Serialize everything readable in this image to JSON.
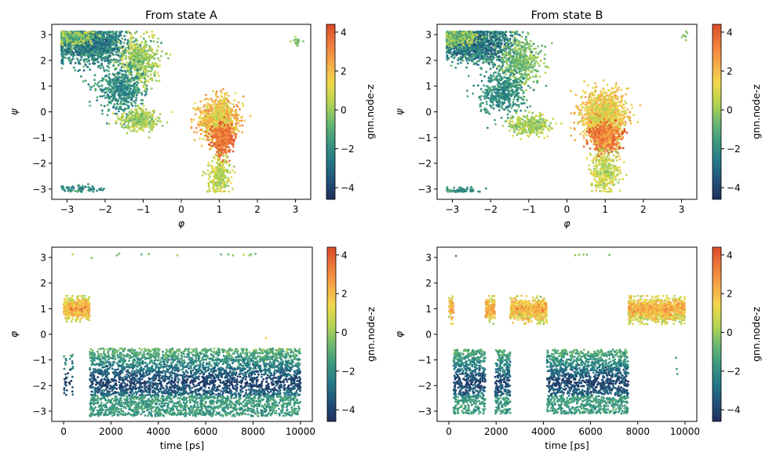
{
  "colormap": {
    "name": "gnn.node-z",
    "stops": [
      "#1d2f5c",
      "#23527a",
      "#237a86",
      "#3c9a80",
      "#6fba70",
      "#b8d64f",
      "#f1d74b",
      "#f7a848",
      "#ef7a3c",
      "#d94a26"
    ],
    "vmin": -4.6,
    "vmax": 4.4,
    "ticks": [
      -4,
      -2,
      0,
      2,
      4
    ]
  },
  "chart_data": [
    {
      "type": "scatter",
      "title": "From state A",
      "xlabel": "φ",
      "ylabel": "ψ",
      "xlim": [
        -3.4,
        3.4
      ],
      "ylim": [
        -3.4,
        3.4
      ],
      "xticks": [
        -3,
        -2,
        -1,
        0,
        1,
        2,
        3
      ],
      "yticks": [
        -3,
        -2,
        -1,
        0,
        1,
        2,
        3
      ],
      "colorbar_label": "gnn.node-z",
      "clusters": [
        {
          "region": "beta",
          "center": [
            -2.4,
            2.6
          ],
          "spread": [
            0.5,
            0.35
          ],
          "n": 1300,
          "z": [
            -4,
            -1
          ]
        },
        {
          "region": "beta-edge",
          "center": [
            -2.9,
            2.9
          ],
          "spread": [
            0.3,
            0.15
          ],
          "n": 300,
          "z": [
            -2,
            1
          ]
        },
        {
          "region": "ppII",
          "center": [
            -1.1,
            2.0
          ],
          "spread": [
            0.25,
            0.45
          ],
          "n": 450,
          "z": [
            -1,
            1
          ]
        },
        {
          "region": "bridge",
          "center": [
            -1.6,
            0.9
          ],
          "spread": [
            0.3,
            0.45
          ],
          "n": 500,
          "z": [
            -3,
            -1
          ]
        },
        {
          "region": "alphaR",
          "center": [
            -1.1,
            -0.3
          ],
          "spread": [
            0.25,
            0.2
          ],
          "n": 350,
          "z": [
            -1,
            1
          ]
        },
        {
          "region": "alphaL",
          "center": [
            1.0,
            -0.3
          ],
          "spread": [
            0.25,
            0.4
          ],
          "n": 900,
          "z": [
            0,
            3
          ]
        },
        {
          "region": "alphaL-core",
          "center": [
            1.1,
            -1.1
          ],
          "spread": [
            0.15,
            0.3
          ],
          "n": 350,
          "z": [
            2.5,
            4.3
          ]
        },
        {
          "region": "alphaL-tail",
          "center": [
            1.0,
            -2.5
          ],
          "spread": [
            0.15,
            0.35
          ],
          "n": 250,
          "z": [
            -0.5,
            1.5
          ]
        },
        {
          "region": "corner-bottom",
          "center": [
            -2.6,
            -3.0
          ],
          "spread": [
            0.35,
            0.08
          ],
          "n": 70,
          "z": [
            -3,
            -1
          ]
        },
        {
          "region": "corner-right",
          "center": [
            3.05,
            2.75
          ],
          "spread": [
            0.06,
            0.1
          ],
          "n": 20,
          "z": [
            -1,
            0.5
          ]
        }
      ]
    },
    {
      "type": "scatter",
      "title": "From state B",
      "xlabel": "φ",
      "ylabel": "ψ",
      "xlim": [
        -3.4,
        3.4
      ],
      "ylim": [
        -3.4,
        3.4
      ],
      "xticks": [
        -3,
        -2,
        -1,
        0,
        1,
        2,
        3
      ],
      "yticks": [
        -3,
        -2,
        -1,
        0,
        1,
        2,
        3
      ],
      "colorbar_label": "gnn.node-z",
      "clusters": [
        {
          "region": "beta",
          "center": [
            -2.3,
            2.6
          ],
          "spread": [
            0.5,
            0.35
          ],
          "n": 1200,
          "z": [
            -4.2,
            -1
          ]
        },
        {
          "region": "beta-edge",
          "center": [
            -2.9,
            2.9
          ],
          "spread": [
            0.3,
            0.15
          ],
          "n": 300,
          "z": [
            -2,
            1
          ]
        },
        {
          "region": "ppII",
          "center": [
            -1.2,
            1.9
          ],
          "spread": [
            0.25,
            0.45
          ],
          "n": 400,
          "z": [
            -1.5,
            0.5
          ]
        },
        {
          "region": "bridge",
          "center": [
            -1.7,
            0.8
          ],
          "spread": [
            0.3,
            0.45
          ],
          "n": 450,
          "z": [
            -3,
            -1
          ]
        },
        {
          "region": "alphaR",
          "center": [
            -1.0,
            -0.5
          ],
          "spread": [
            0.25,
            0.2
          ],
          "n": 300,
          "z": [
            -1,
            1
          ]
        },
        {
          "region": "alphaL",
          "center": [
            0.95,
            -0.1
          ],
          "spread": [
            0.3,
            0.45
          ],
          "n": 1100,
          "z": [
            0,
            2.5
          ]
        },
        {
          "region": "alphaL-core",
          "center": [
            1.0,
            -1.0
          ],
          "spread": [
            0.2,
            0.3
          ],
          "n": 500,
          "z": [
            2,
            4.3
          ]
        },
        {
          "region": "alphaL-tail",
          "center": [
            1.0,
            -2.3
          ],
          "spread": [
            0.18,
            0.4
          ],
          "n": 350,
          "z": [
            -0.5,
            1.5
          ]
        },
        {
          "region": "corner-bottom",
          "center": [
            -2.8,
            -3.05
          ],
          "spread": [
            0.3,
            0.07
          ],
          "n": 60,
          "z": [
            -3,
            -1
          ]
        },
        {
          "region": "corner-right",
          "center": [
            3.1,
            2.9
          ],
          "spread": [
            0.04,
            0.15
          ],
          "n": 8,
          "z": [
            -1,
            0.5
          ]
        }
      ]
    },
    {
      "type": "scatter",
      "xlabel": "time [ps]",
      "ylabel": "φ",
      "xlim": [
        -500,
        10500
      ],
      "ylim": [
        -3.4,
        3.4
      ],
      "xticks": [
        0,
        2000,
        4000,
        6000,
        8000,
        10000
      ],
      "yticks": [
        -3,
        -2,
        -1,
        0,
        1,
        2,
        3
      ],
      "colorbar_label": "gnn.node-z",
      "segments": [
        {
          "state": "alphaL",
          "t": [
            0,
            1100
          ],
          "y": [
            0.5,
            1.5
          ],
          "n": 500
        },
        {
          "state": "beta",
          "t": [
            1100,
            10000
          ],
          "y": [
            -3.2,
            -0.55
          ],
          "n": 4200
        },
        {
          "state": "beta-sparse",
          "t": [
            0,
            400
          ],
          "y": [
            -2.6,
            -0.6
          ],
          "n": 40
        }
      ],
      "outliers": [
        [
          380,
          3.12
        ],
        [
          1180,
          2.98
        ],
        [
          2250,
          3.08
        ],
        [
          2350,
          3.15
        ],
        [
          3280,
          3.12
        ],
        [
          3600,
          3.13
        ],
        [
          4800,
          3.08
        ],
        [
          6650,
          3.12
        ],
        [
          6950,
          3.12
        ],
        [
          7150,
          3.08
        ],
        [
          7600,
          3.1
        ],
        [
          7850,
          3.08
        ],
        [
          7920,
          3.12
        ],
        [
          8100,
          3.14
        ],
        [
          8550,
          -0.15
        ]
      ]
    },
    {
      "type": "scatter",
      "xlabel": "time [ps]",
      "ylabel": "φ",
      "xlim": [
        -500,
        10500
      ],
      "ylim": [
        -3.4,
        3.4
      ],
      "xticks": [
        0,
        2000,
        4000,
        6000,
        8000,
        10000
      ],
      "yticks": [
        -3,
        -2,
        -1,
        0,
        1,
        2,
        3
      ],
      "colorbar_label": "gnn.node-z",
      "segments": [
        {
          "state": "alphaL",
          "t": [
            0,
            200
          ],
          "y": [
            0.4,
            1.6
          ],
          "n": 60
        },
        {
          "state": "beta",
          "t": [
            200,
            1550
          ],
          "y": [
            -3.1,
            -0.6
          ],
          "n": 650
        },
        {
          "state": "alphaL",
          "t": [
            1550,
            1950
          ],
          "y": [
            0.4,
            1.5
          ],
          "n": 150
        },
        {
          "state": "beta",
          "t": [
            1950,
            2600
          ],
          "y": [
            -3.1,
            -0.6
          ],
          "n": 320
        },
        {
          "state": "alphaL",
          "t": [
            2600,
            4150
          ],
          "y": [
            0.4,
            1.5
          ],
          "n": 650
        },
        {
          "state": "beta",
          "t": [
            4150,
            7600
          ],
          "y": [
            -3.1,
            -0.6
          ],
          "n": 1600
        },
        {
          "state": "alphaL",
          "t": [
            7600,
            10000
          ],
          "y": [
            0.4,
            1.5
          ],
          "n": 1100
        }
      ],
      "outliers": [
        [
          300,
          3.06
        ],
        [
          5350,
          3.09
        ],
        [
          5520,
          3.1
        ],
        [
          5700,
          3.11
        ],
        [
          5850,
          3.11
        ],
        [
          6800,
          3.1
        ],
        [
          9620,
          -0.92
        ],
        [
          9650,
          -1.35
        ],
        [
          9680,
          -1.55
        ]
      ]
    }
  ]
}
